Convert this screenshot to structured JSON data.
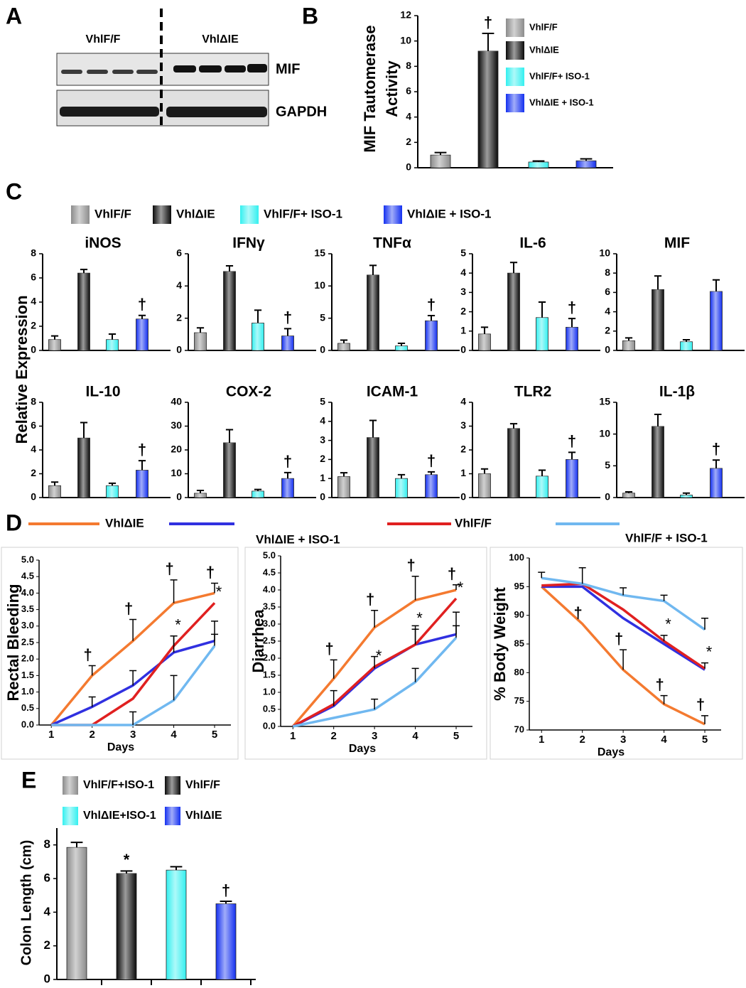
{
  "blot": {
    "label": "A",
    "groups": [
      "VhlF/F",
      "VhlΔIE"
    ],
    "rows": [
      "MIF",
      "GAPDH"
    ]
  },
  "chart_data": [
    {
      "type": "bar",
      "label": "B",
      "ylabel": [
        "MIF Tautomerase",
        "Activity"
      ],
      "series": [
        {
          "name": "VhlF/F",
          "color": "#8c8c8c"
        },
        {
          "name": "VhlΔIE",
          "color": "#0a0a0a"
        },
        {
          "name": "VhlF/F+ ISO-1",
          "color": "#33f0f0"
        },
        {
          "name": "VhlΔIE + ISO-1",
          "color": "#1430f0"
        }
      ],
      "panels": [
        {
          "ylim": [
            0,
            12
          ],
          "yticks": [
            0,
            2,
            4,
            6,
            8,
            10,
            12
          ],
          "values": [
            1.0,
            9.2,
            0.45,
            0.55
          ],
          "errors": [
            0.2,
            1.4,
            0.08,
            0.15
          ],
          "annotations": [
            null,
            "†",
            null,
            null
          ]
        }
      ]
    },
    {
      "type": "bar",
      "label": "C",
      "ylabel": "Relative Expression",
      "series": [
        {
          "name": "VhlF/F",
          "color": "#8c8c8c"
        },
        {
          "name": "VhlΔIE",
          "color": "#0a0a0a"
        },
        {
          "name": "VhlF/F+ ISO-1",
          "color": "#33f0f0"
        },
        {
          "name": "VhlΔIE + ISO-1",
          "color": "#1430f0"
        }
      ],
      "panels": [
        {
          "title": "iNOS",
          "ylim": [
            0,
            8
          ],
          "yticks": [
            0,
            2,
            4,
            6,
            8
          ],
          "values": [
            0.9,
            6.4,
            0.9,
            2.6
          ],
          "errors": [
            0.3,
            0.3,
            0.45,
            0.3
          ],
          "annotations": [
            null,
            null,
            null,
            "†"
          ]
        },
        {
          "title": "IFNγ",
          "ylim": [
            0,
            6
          ],
          "yticks": [
            0,
            2,
            4,
            6
          ],
          "values": [
            1.1,
            4.9,
            1.7,
            0.9
          ],
          "errors": [
            0.3,
            0.35,
            0.8,
            0.45
          ],
          "annotations": [
            null,
            null,
            null,
            "†"
          ]
        },
        {
          "title": "TNFα",
          "ylim": [
            0,
            15
          ],
          "yticks": [
            0,
            5,
            10,
            15
          ],
          "values": [
            1.1,
            11.7,
            0.7,
            4.6
          ],
          "errors": [
            0.5,
            1.5,
            0.4,
            0.8
          ],
          "annotations": [
            null,
            null,
            null,
            "†"
          ]
        },
        {
          "title": "IL-6",
          "ylim": [
            0,
            5
          ],
          "yticks": [
            0,
            1,
            2,
            3,
            4,
            5
          ],
          "values": [
            0.85,
            4.0,
            1.7,
            1.2
          ],
          "errors": [
            0.35,
            0.55,
            0.8,
            0.45
          ],
          "annotations": [
            null,
            null,
            null,
            "†"
          ]
        },
        {
          "title": "MIF",
          "ylim": [
            0,
            10
          ],
          "yticks": [
            0,
            2,
            4,
            6,
            8,
            10
          ],
          "values": [
            1.0,
            6.3,
            0.9,
            6.1
          ],
          "errors": [
            0.3,
            1.4,
            0.2,
            1.2
          ],
          "annotations": [
            null,
            null,
            null,
            null
          ]
        },
        {
          "title": "IL-10",
          "ylim": [
            0,
            8
          ],
          "yticks": [
            0,
            2,
            4,
            6,
            8
          ],
          "values": [
            1.0,
            5.0,
            1.0,
            2.3
          ],
          "errors": [
            0.3,
            1.3,
            0.2,
            0.8
          ],
          "annotations": [
            null,
            null,
            null,
            "†"
          ]
        },
        {
          "title": "COX-2",
          "ylim": [
            0,
            40
          ],
          "yticks": [
            0,
            10,
            20,
            30,
            40
          ],
          "values": [
            1.8,
            23,
            2.7,
            8
          ],
          "errors": [
            1.2,
            5.5,
            0.7,
            2.5
          ],
          "annotations": [
            null,
            null,
            null,
            "†"
          ]
        },
        {
          "title": "ICAM-1",
          "ylim": [
            0,
            5
          ],
          "yticks": [
            0,
            1,
            2,
            3,
            4,
            5
          ],
          "values": [
            1.1,
            3.15,
            1.0,
            1.2
          ],
          "errors": [
            0.2,
            0.9,
            0.2,
            0.15
          ],
          "annotations": [
            null,
            null,
            null,
            "†"
          ]
        },
        {
          "title": "TLR2",
          "ylim": [
            0,
            4
          ],
          "yticks": [
            0,
            1,
            2,
            3,
            4
          ],
          "values": [
            1.0,
            2.9,
            0.9,
            1.6
          ],
          "errors": [
            0.2,
            0.2,
            0.25,
            0.3
          ],
          "annotations": [
            null,
            null,
            null,
            "†"
          ]
        },
        {
          "title": "IL-1β",
          "ylim": [
            0,
            15
          ],
          "yticks": [
            0,
            5,
            10,
            15
          ],
          "values": [
            0.7,
            11.2,
            0.4,
            4.6
          ],
          "errors": [
            0.2,
            1.9,
            0.3,
            1.3
          ],
          "annotations": [
            null,
            null,
            null,
            "†"
          ]
        }
      ]
    },
    {
      "type": "line",
      "label": "D",
      "series": [
        {
          "name": "VhlΔIE",
          "color": "#f47a30"
        },
        {
          "name": "VhlΔIE + ISO-1",
          "color": "#3030e0"
        },
        {
          "name": "VhlF/F",
          "color": "#e02020"
        },
        {
          "name": "VhlF/F + ISO-1",
          "color": "#70b8f0"
        }
      ],
      "panels": [
        {
          "ylabel": "Rectal Bleeding",
          "xlabel": "Days",
          "x": [
            1,
            2,
            3,
            4,
            5
          ],
          "xlim": [
            0.7,
            5.4
          ],
          "xticks": [
            1,
            2,
            3,
            4,
            5
          ],
          "ylim": [
            0,
            5
          ],
          "yticks": [
            {
              "value": 0,
              "label": "0.0"
            },
            0.5,
            {
              "value": 1,
              "label": "1.0"
            },
            1.5,
            {
              "value": 2,
              "label": "2.0"
            },
            2.5,
            {
              "value": 3,
              "label": "3.0"
            },
            3.5,
            {
              "value": 4,
              "label": "4.0"
            },
            4.5,
            {
              "value": 5,
              "label": "5.0"
            }
          ],
          "lines": [
            {
              "values": [
                0,
                1.5,
                2.55,
                3.7,
                4.0
              ],
              "errors": [
                null,
                0.3,
                0.65,
                0.7,
                0.3
              ],
              "annotations": [
                null,
                "†",
                "†",
                "†",
                "†"
              ]
            },
            {
              "values": [
                0,
                0.55,
                1.2,
                2.2,
                2.55
              ],
              "errors": [
                null,
                0.3,
                0.45,
                0.5,
                0.6
              ],
              "annotations": [
                null,
                null,
                null,
                null,
                null
              ]
            },
            {
              "values": [
                0,
                0,
                0.8,
                2.4,
                3.7
              ],
              "errors": [
                null,
                null,
                null,
                0.3,
                null
              ],
              "annotations": [
                null,
                null,
                null,
                "*",
                "*"
              ]
            },
            {
              "values": [
                0,
                0,
                0,
                0.75,
                2.4
              ],
              "errors": [
                null,
                null,
                0.4,
                0.75,
                0.35
              ],
              "annotations": [
                null,
                null,
                null,
                null,
                null
              ]
            }
          ]
        },
        {
          "ylabel": "Diarrhea",
          "xlabel": "Days",
          "x": [
            1,
            2,
            3,
            4,
            5
          ],
          "xlim": [
            0.7,
            5.4
          ],
          "xticks": [
            1,
            2,
            3,
            4,
            5
          ],
          "ylim": [
            0,
            5
          ],
          "yticks": [
            {
              "value": 0,
              "label": "0.0"
            },
            0.5,
            {
              "value": 1,
              "label": "1.0"
            },
            1.5,
            {
              "value": 2,
              "label": "2.0"
            },
            2.5,
            {
              "value": 3,
              "label": "3.0"
            },
            3.5,
            {
              "value": 4,
              "label": "4.0"
            },
            4.5,
            {
              "value": 5,
              "label": "5.0"
            }
          ],
          "lines": [
            {
              "values": [
                0,
                1.4,
                2.9,
                3.7,
                4.0
              ],
              "errors": [
                null,
                0.55,
                0.5,
                0.7,
                0.15
              ],
              "annotations": [
                null,
                "†",
                "†",
                "†",
                "†"
              ]
            },
            {
              "values": [
                0,
                0.6,
                1.7,
                2.4,
                2.7
              ],
              "errors": [
                null,
                0.45,
                0.35,
                0.55,
                0.65
              ],
              "annotations": [
                null,
                null,
                null,
                null,
                null
              ]
            },
            {
              "values": [
                0,
                0.65,
                1.75,
                2.4,
                3.75
              ],
              "errors": [
                null,
                null,
                null,
                0.45,
                null
              ],
              "annotations": [
                null,
                null,
                "*",
                "*",
                "*"
              ]
            },
            {
              "values": [
                0,
                0.25,
                0.5,
                1.3,
                2.6
              ],
              "errors": [
                null,
                null,
                0.3,
                0.4,
                0.35
              ],
              "annotations": [
                null,
                null,
                null,
                null,
                null
              ]
            }
          ]
        },
        {
          "ylabel": "% Body Weight",
          "xlabel": "Days",
          "x": [
            1,
            2,
            3,
            4,
            5
          ],
          "xlim": [
            0.7,
            5.4
          ],
          "xticks": [
            1,
            2,
            3,
            4,
            5
          ],
          "ylim": [
            70,
            100
          ],
          "yticks": [
            70,
            75,
            80,
            85,
            90,
            95,
            100
          ],
          "lines": [
            {
              "values": [
                95,
                88.5,
                80.5,
                74.5,
                71
              ],
              "errors": [
                null,
                null,
                3.5,
                1.5,
                1.5
              ],
              "annotations": [
                null,
                "†",
                "†",
                "†",
                "†"
              ]
            },
            {
              "values": [
                95,
                95,
                89.5,
                85,
                80.5
              ],
              "errors": [
                null,
                null,
                null,
                null,
                null
              ],
              "annotations": [
                null,
                null,
                null,
                null,
                null
              ]
            },
            {
              "values": [
                95.2,
                95.5,
                91,
                85.5,
                80.7
              ],
              "errors": [
                null,
                null,
                null,
                1,
                1
              ],
              "annotations": [
                null,
                null,
                null,
                "*",
                "*"
              ]
            },
            {
              "values": [
                96.5,
                95.5,
                93.5,
                92.5,
                87.5
              ],
              "errors": [
                1,
                2.8,
                1.3,
                1,
                2
              ],
              "annotations": [
                null,
                null,
                null,
                null,
                null
              ]
            }
          ]
        }
      ]
    },
    {
      "type": "bar",
      "label": "E",
      "ylabel": "Colon Length (cm)",
      "series": [
        {
          "name": "VhlF/F+ISO-1",
          "color": "#8c8c8c"
        },
        {
          "name": "VhlF/F",
          "color": "#0a0a0a"
        },
        {
          "name": "VhlΔIE+ISO-1",
          "color": "#33f0f0"
        },
        {
          "name": "VhlΔIE",
          "color": "#1430f0"
        }
      ],
      "panels": [
        {
          "ylim": [
            0,
            9
          ],
          "yticks": [
            0,
            2,
            4,
            6,
            8
          ],
          "values": [
            7.85,
            6.3,
            6.5,
            4.5
          ],
          "errors": [
            0.3,
            0.15,
            0.2,
            0.15
          ],
          "annotations": [
            null,
            "*",
            null,
            "†"
          ]
        }
      ]
    }
  ]
}
